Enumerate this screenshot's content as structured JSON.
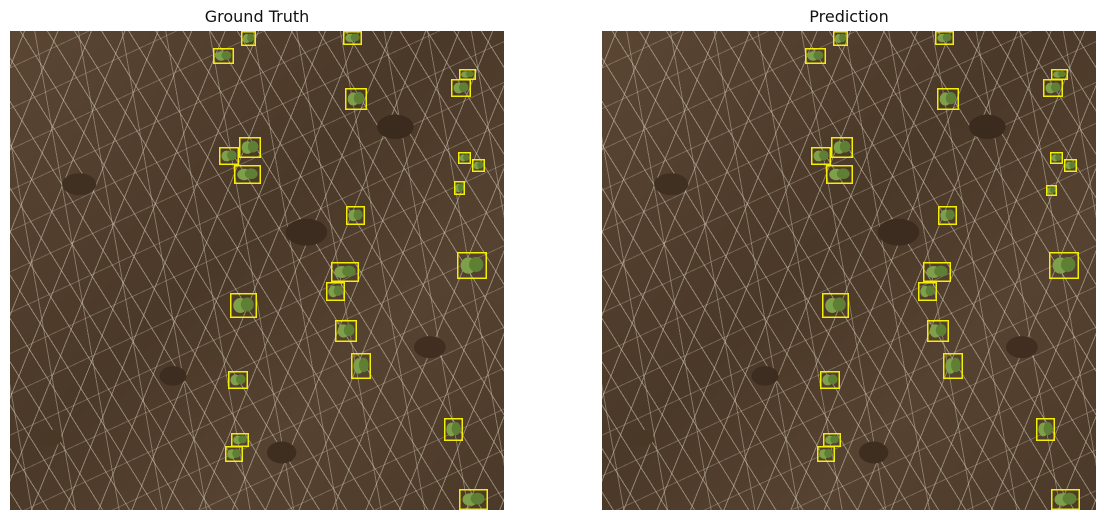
{
  "panels": [
    {
      "title": "Ground Truth"
    },
    {
      "title": "Prediction"
    }
  ],
  "colors": {
    "box": "#f2ef00",
    "plant": "#7fa04a",
    "plant_dark": "#5f7f35"
  }
}
